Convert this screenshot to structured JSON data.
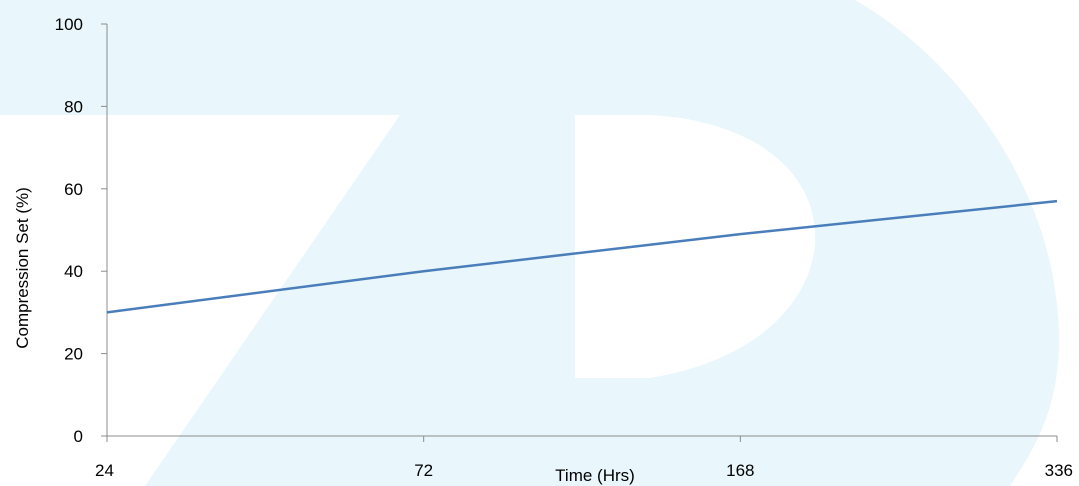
{
  "chart_data": {
    "type": "line",
    "title": "",
    "xlabel": "Time (Hrs)",
    "ylabel": "Compression Set (%)",
    "categories": [
      "24",
      "72",
      "168",
      "336"
    ],
    "series": [
      {
        "values": [
          30,
          40,
          49,
          57
        ]
      }
    ],
    "ylim": [
      0,
      100
    ],
    "yticks": [
      "0",
      "20",
      "40",
      "60",
      "80",
      "100"
    ],
    "grid": false,
    "legend": "none",
    "colors": {
      "line": "#4a7ebb",
      "axis": "#8c8c8c",
      "watermark": "#e9f6fb"
    },
    "watermark": "logo"
  }
}
